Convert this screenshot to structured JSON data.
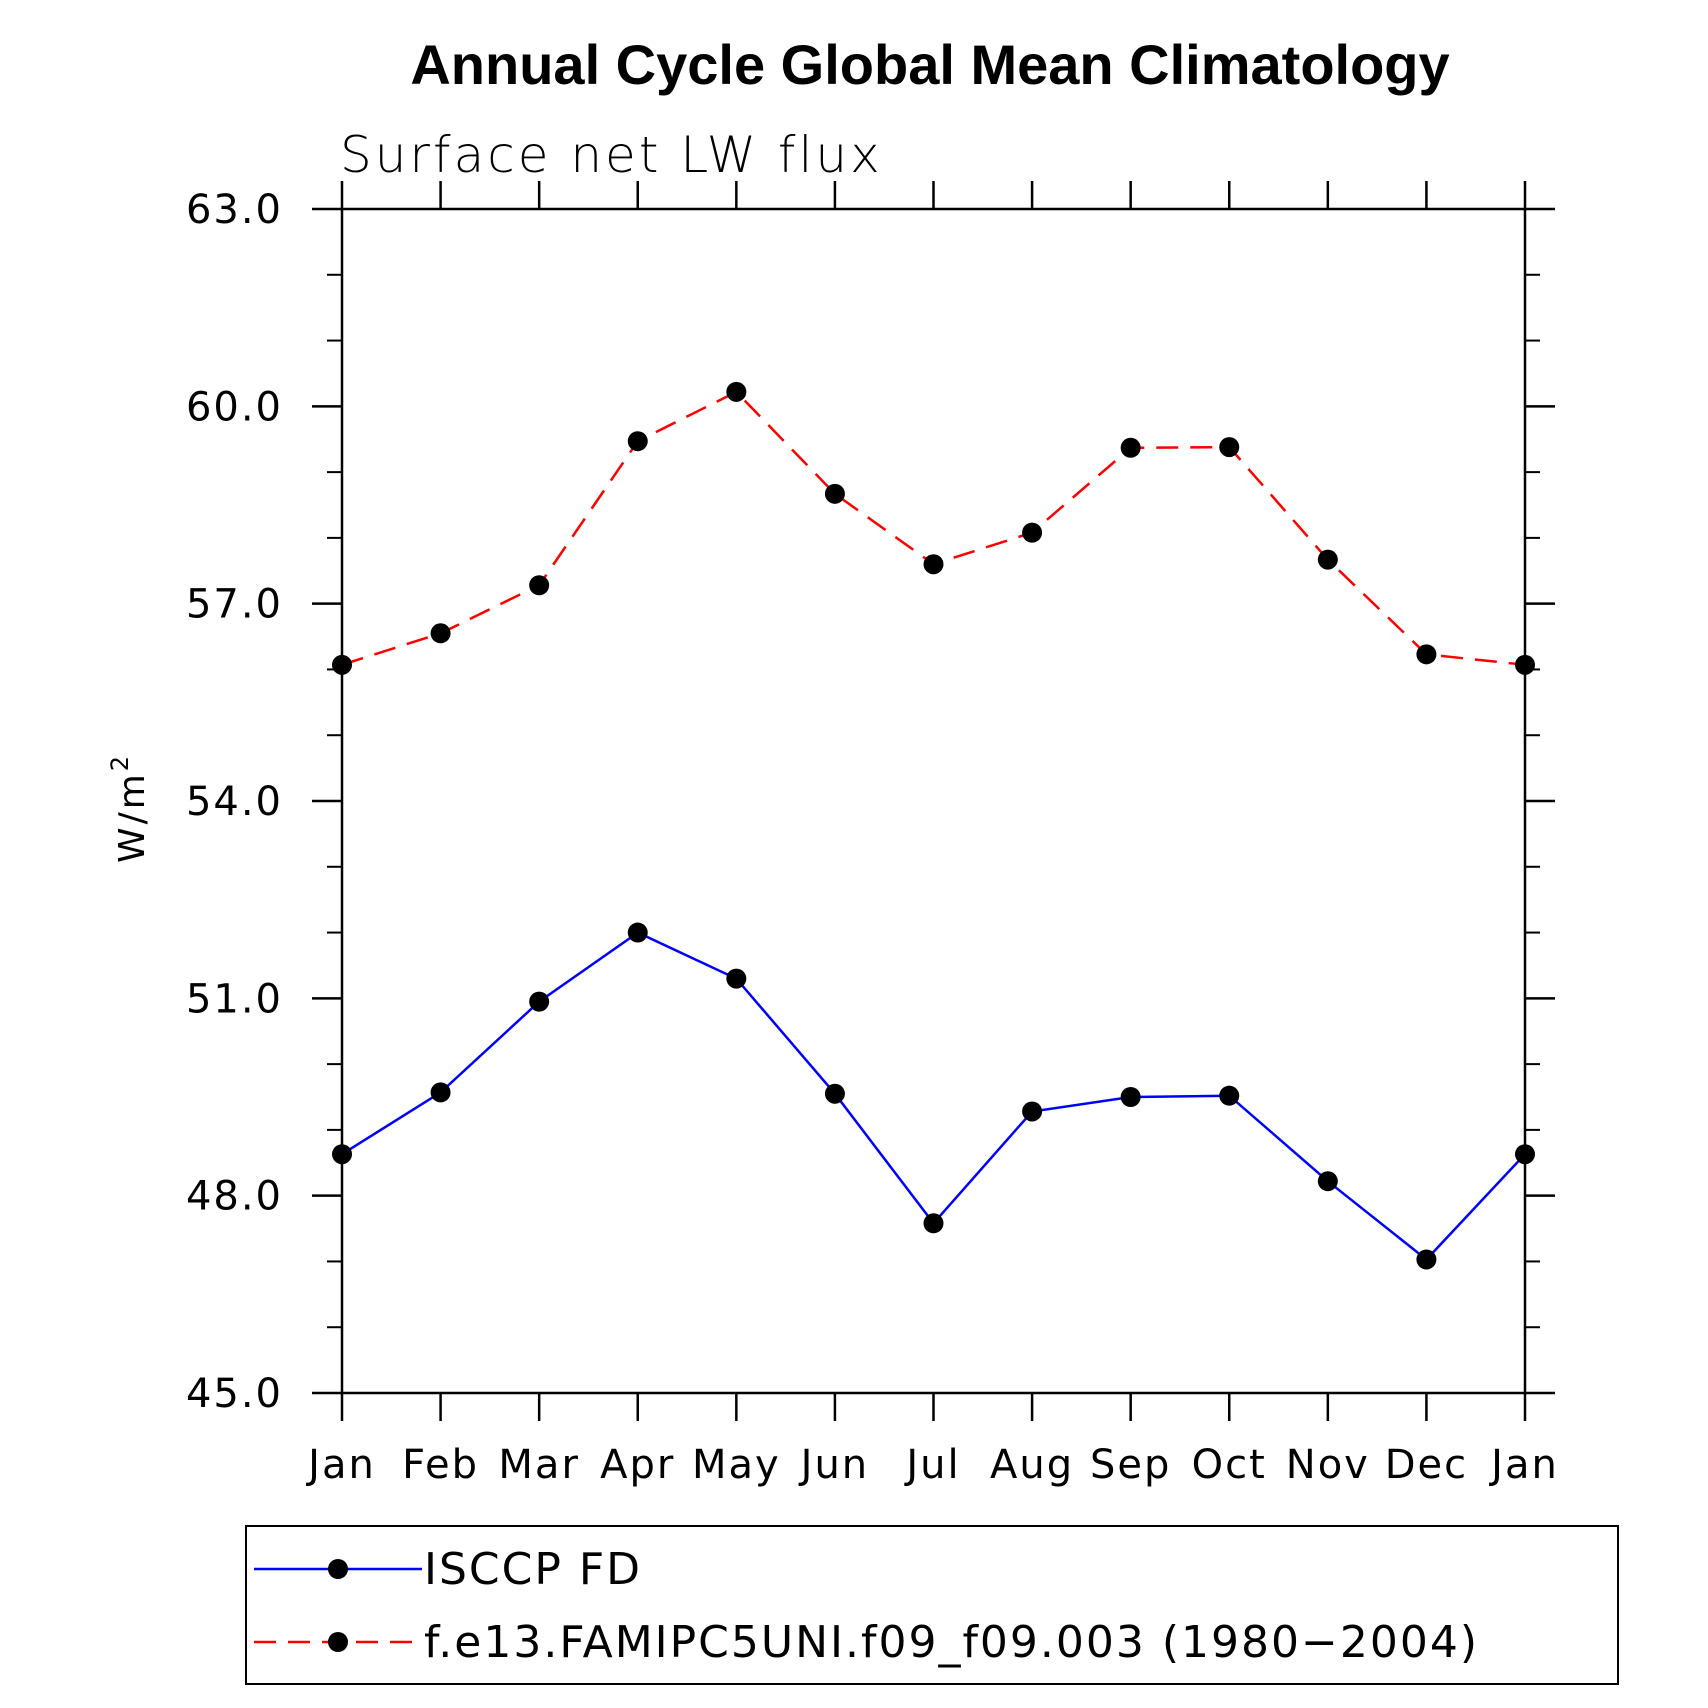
{
  "chart_data": {
    "type": "line",
    "title": "Annual Cycle Global Mean Climatology",
    "subtitle": "Surface net LW flux",
    "ylabel_text": "W/m",
    "ylabel_sup": "2",
    "xlabel": "",
    "categories": [
      "Jan",
      "Feb",
      "Mar",
      "Apr",
      "May",
      "Jun",
      "Jul",
      "Aug",
      "Sep",
      "Oct",
      "Nov",
      "Dec",
      "Jan"
    ],
    "yticks": [
      "45.0",
      "48.0",
      "51.0",
      "54.0",
      "57.0",
      "60.0",
      "63.0"
    ],
    "ylim": [
      45,
      63
    ],
    "series": [
      {
        "name": "ISCCP FD",
        "color": "#0000ff",
        "dash": "solid",
        "values": [
          48.63,
          49.57,
          50.95,
          52.0,
          51.3,
          49.55,
          47.58,
          49.28,
          49.5,
          49.52,
          48.22,
          47.03,
          48.63
        ]
      },
      {
        "name": "f.e13.FAMIPC5UNI.f09_f09.003 (1980−2004)",
        "color": "#ff0000",
        "dash": "dashed",
        "values": [
          56.07,
          56.55,
          57.28,
          59.47,
          60.22,
          58.67,
          57.6,
          58.08,
          59.37,
          59.38,
          57.67,
          56.23,
          56.07
        ]
      }
    ],
    "grid": false,
    "legend_position": "bottom"
  }
}
